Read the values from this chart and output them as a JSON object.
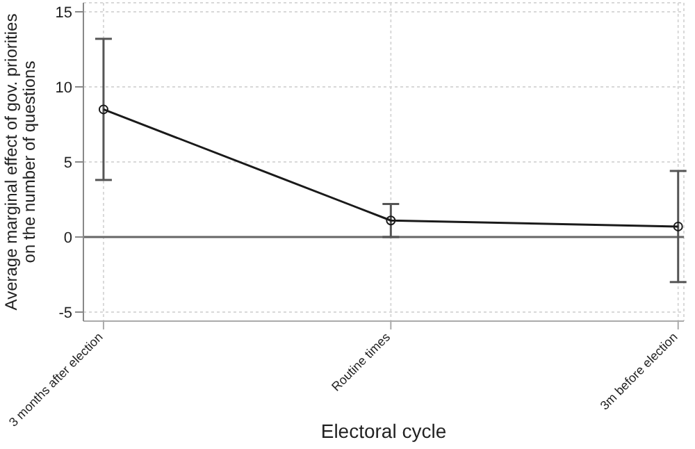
{
  "chart_data": {
    "type": "line",
    "xlabel": "Electoral cycle",
    "ylabel": "Average marginal effect of gov. priorities on the number of questions",
    "categories": [
      "3 months after election",
      "Routine times",
      "3m before election"
    ],
    "series": [
      {
        "color": "#1a1a1a",
        "values": [
          8.5,
          1.1,
          0.7
        ],
        "errors": [
          [
            3.8,
            13.2
          ],
          [
            0.0,
            2.2
          ],
          [
            -3.0,
            4.4
          ]
        ]
      }
    ],
    "ylim": [
      -5.6,
      15.6
    ],
    "yticks": [
      -5,
      0,
      5,
      10,
      15
    ],
    "grid": true,
    "marker": "circle",
    "line_style": "solid",
    "ref_lines": [
      {
        "axis": "y",
        "value": 0,
        "color": "#666666"
      }
    ]
  }
}
